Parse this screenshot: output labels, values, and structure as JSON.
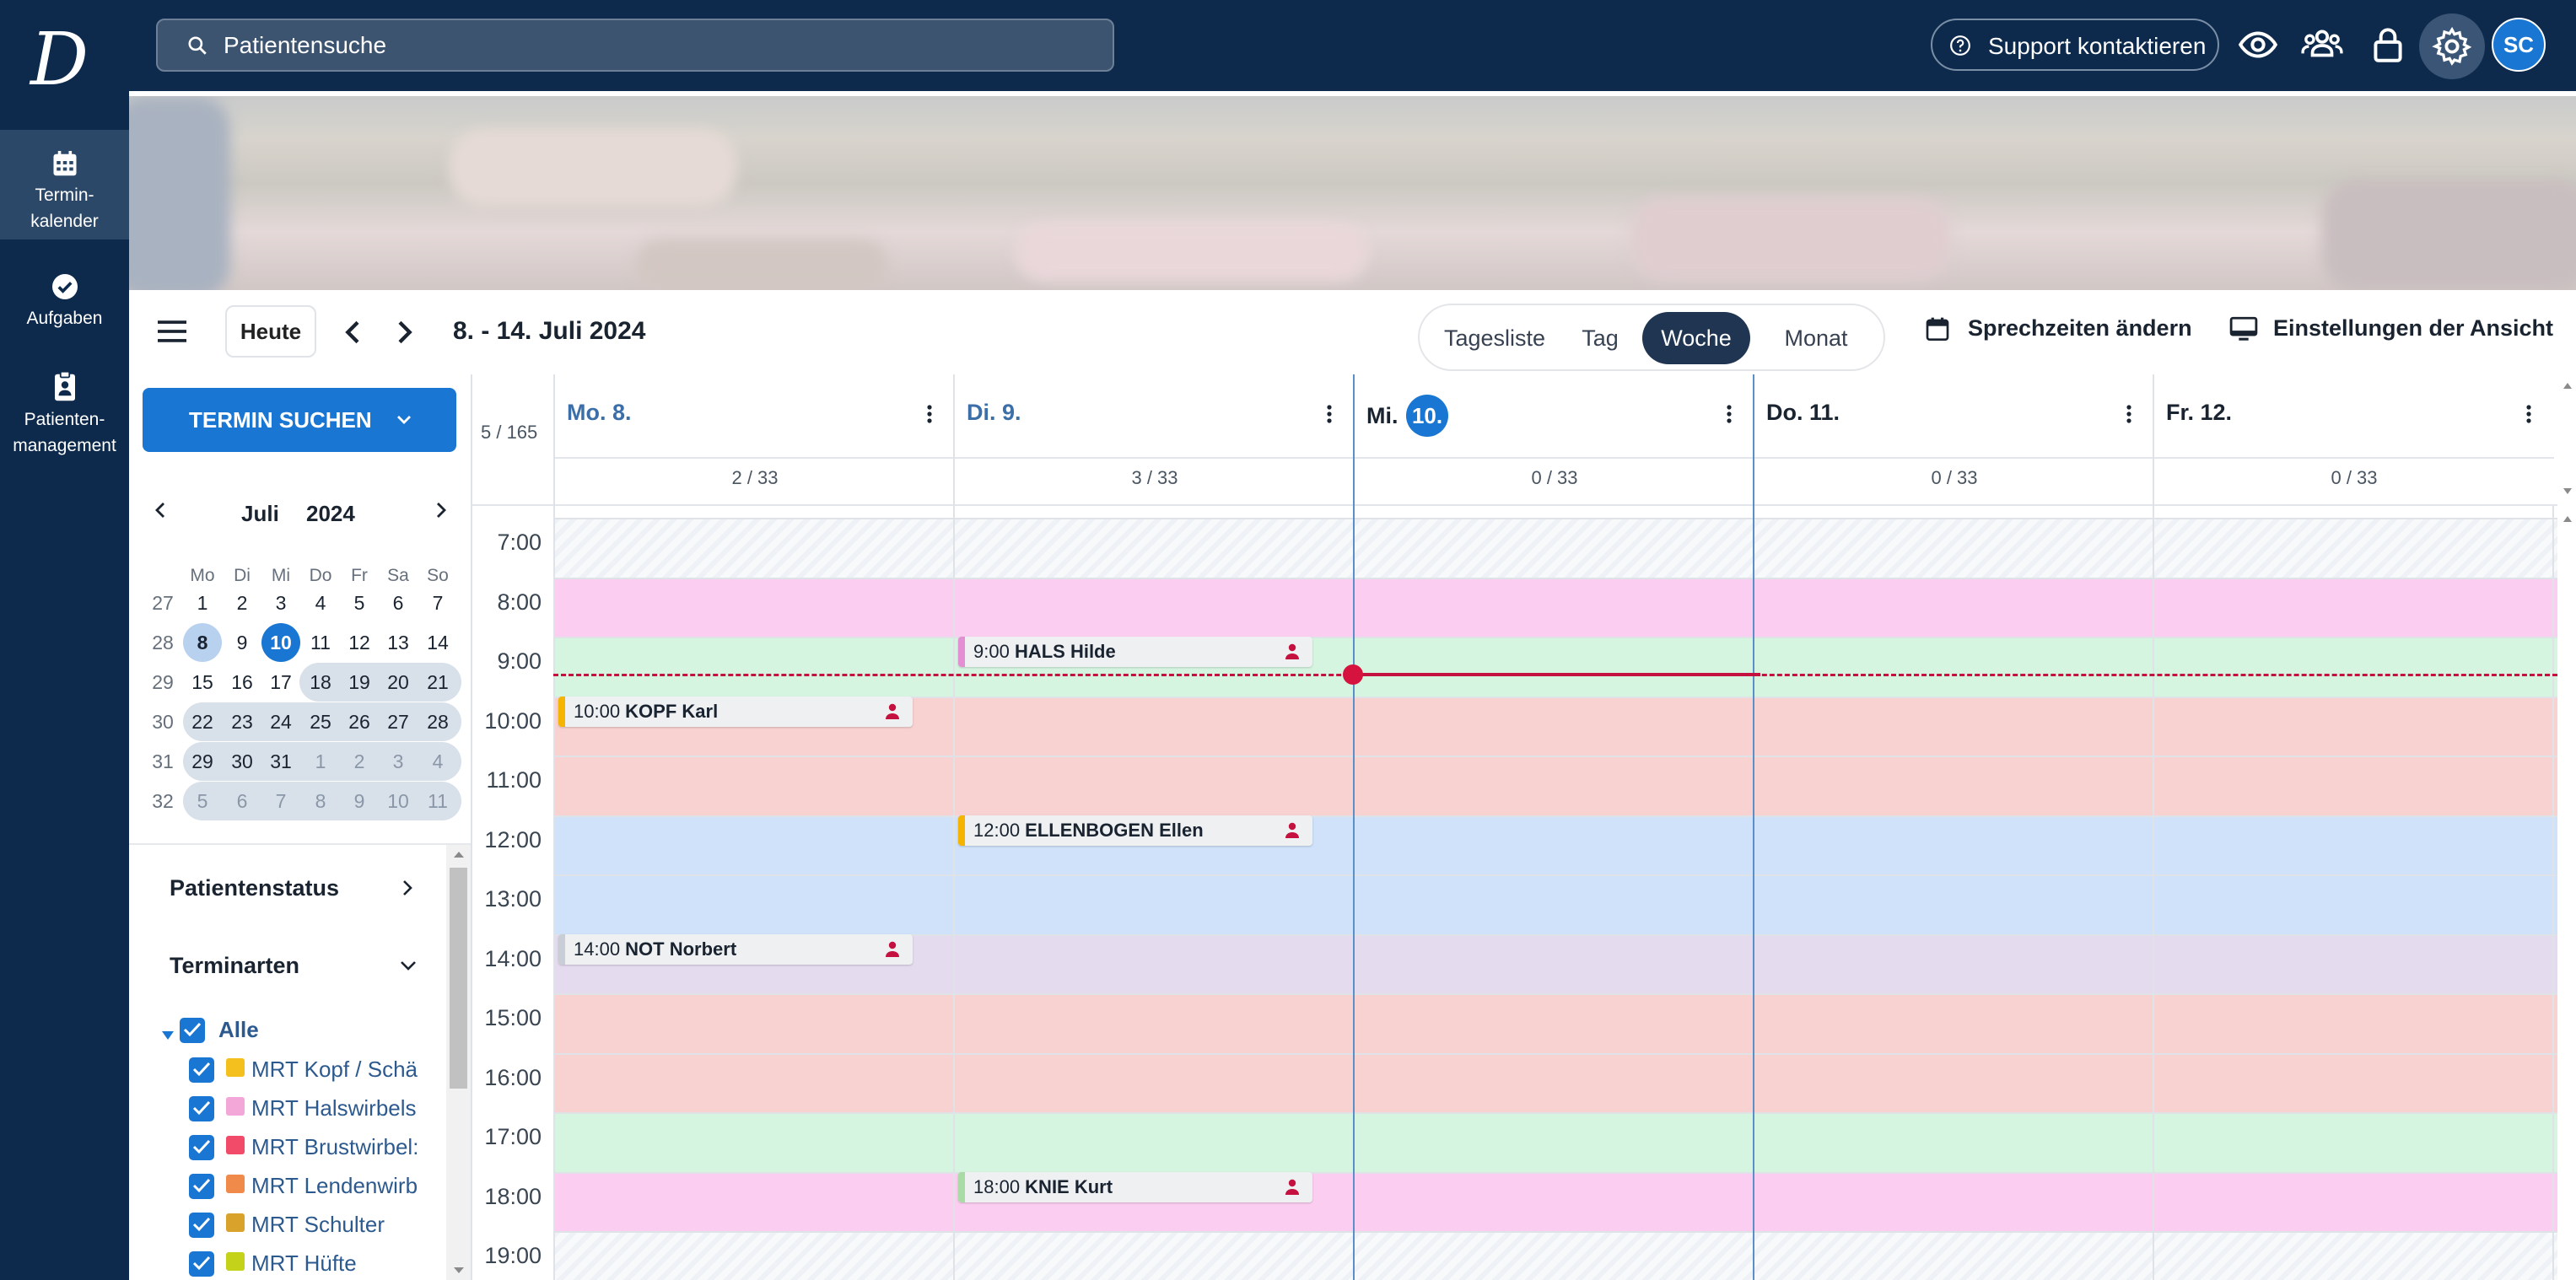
{
  "app": {
    "search_placeholder": "Patientensuche",
    "support_label": "Support kontaktieren",
    "avatar_initials": "SC",
    "logo_letter": "D"
  },
  "sidebar": {
    "items": [
      {
        "label_line1": "Termin-",
        "label_line2": "kalender",
        "icon": "calendar-icon",
        "active": true
      },
      {
        "label_line1": "Aufgaben",
        "label_line2": "",
        "icon": "check-circle-icon",
        "active": false
      },
      {
        "label_line1": "Patienten-",
        "label_line2": "management",
        "icon": "clipboard-person-icon",
        "active": false
      }
    ]
  },
  "toolbar": {
    "today_label": "Heute",
    "date_range": "8. - 14. Juli 2024",
    "views": [
      "Tagesliste",
      "Tag",
      "Woche",
      "Monat"
    ],
    "active_view": "Woche",
    "sprechzeiten_label": "Sprechzeiten ändern",
    "einstellungen_label": "Einstellungen der Ansicht"
  },
  "left_panel": {
    "find_button": "TERMIN SUCHEN",
    "mini_calendar": {
      "month": "Juli",
      "year": "2024",
      "weekday_headers": [
        "Mo",
        "Di",
        "Mi",
        "Do",
        "Fr",
        "Sa",
        "So"
      ],
      "weeks": [
        {
          "kw": "27",
          "days": [
            "1",
            "2",
            "3",
            "4",
            "5",
            "6",
            "7"
          ]
        },
        {
          "kw": "28",
          "days": [
            "8",
            "9",
            "10",
            "11",
            "12",
            "13",
            "14"
          ]
        },
        {
          "kw": "29",
          "days": [
            "15",
            "16",
            "17",
            "18",
            "19",
            "20",
            "21"
          ]
        },
        {
          "kw": "30",
          "days": [
            "22",
            "23",
            "24",
            "25",
            "26",
            "27",
            "28"
          ]
        },
        {
          "kw": "31",
          "days": [
            "29",
            "30",
            "31",
            "1",
            "2",
            "3",
            "4"
          ]
        },
        {
          "kw": "32",
          "days": [
            "5",
            "6",
            "7",
            "8",
            "9",
            "10",
            "11"
          ]
        }
      ],
      "selected_day": "8",
      "today": "10"
    },
    "filters": {
      "patientenstatus_label": "Patientenstatus",
      "terminarten_label": "Terminarten",
      "all_label": "Alle",
      "items": [
        {
          "label": "MRT Kopf / Schä",
          "color": "#f4c01e"
        },
        {
          "label": "MRT Halswirbels",
          "color": "#f3a6d8"
        },
        {
          "label": "MRT Brustwirbel:",
          "color": "#f24b6a"
        },
        {
          "label": "MRT Lendenwirb",
          "color": "#f08a4b"
        },
        {
          "label": "MRT Schulter",
          "color": "#d9a22a"
        },
        {
          "label": "MRT Hüfte",
          "color": "#c4d21a"
        }
      ]
    }
  },
  "calendar": {
    "counter": "5 / 165",
    "days": [
      {
        "label": "Mo. 8.",
        "count": "2 / 33"
      },
      {
        "label": "Di. 9.",
        "count": "3 / 33"
      },
      {
        "label_prefix": "Mi.",
        "label_num": "10.",
        "count": "0 / 33"
      },
      {
        "label": "Do. 11.",
        "count": "0 / 33"
      },
      {
        "label": "Fr. 12.",
        "count": "0 / 33"
      }
    ],
    "hours": [
      "7:00",
      "8:00",
      "9:00",
      "10:00",
      "11:00",
      "12:00",
      "13:00",
      "14:00",
      "15:00",
      "16:00",
      "17:00",
      "18:00",
      "19:00"
    ],
    "hour_colors": [
      "#f4f6fa",
      "#fbcdf0",
      "#d6f5e1",
      "#f7d2d1",
      "#f7d2d1",
      "#cfe2fa",
      "#cfe2fa",
      "#e4dbef",
      "#f7d2d1",
      "#f7d2d1",
      "#d6f5e1",
      "#fbcdf0",
      "#f4f6fa"
    ],
    "appointments": [
      {
        "time": "9:00",
        "name": "HALS Hilde",
        "color": "#e48ed3"
      },
      {
        "time": "10:00",
        "name": "KOPF Karl",
        "color": "#f4b400"
      },
      {
        "time": "12:00",
        "name": "ELLENBOGEN Ellen",
        "color": "#f4b400"
      },
      {
        "time": "14:00",
        "name": "NOT Norbert",
        "color": "#c9ced6"
      },
      {
        "time": "18:00",
        "name": "KNIE Kurt",
        "color": "#a8dba6"
      }
    ]
  }
}
